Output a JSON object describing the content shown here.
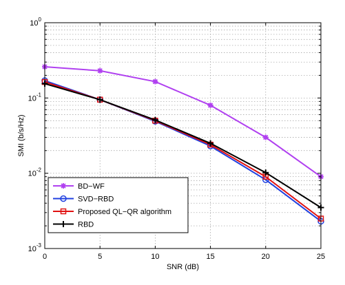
{
  "chart_data": {
    "type": "line",
    "title": "",
    "xlabel": "SNR (dB)",
    "ylabel": "SMI (b/s/Hz)",
    "xlim": [
      0,
      25
    ],
    "ylim": [
      0.001,
      1
    ],
    "yscale": "log",
    "grid": true,
    "legend_position": "bottom-left",
    "x_ticks": [
      0,
      5,
      10,
      15,
      20,
      25
    ],
    "x_tick_labels": [
      "0",
      "5",
      "10",
      "15",
      "20",
      "25"
    ],
    "y_ticks": [
      0.001,
      0.01,
      0.1,
      1
    ],
    "y_tick_labels": [
      {
        "base": "10",
        "exp": "-3"
      },
      {
        "base": "10",
        "exp": "-2"
      },
      {
        "base": "10",
        "exp": "-1"
      },
      {
        "base": "10",
        "exp": "0"
      }
    ],
    "x": [
      0,
      5,
      10,
      15,
      20,
      25
    ],
    "series": [
      {
        "name": "BD−WF",
        "values": [
          0.26,
          0.23,
          0.165,
          0.08,
          0.03,
          0.009
        ],
        "color": "#b040f0",
        "marker": "star"
      },
      {
        "name": "SVD−RBD",
        "values": [
          0.17,
          0.095,
          0.049,
          0.023,
          0.0082,
          0.0023
        ],
        "color": "#2040e0",
        "marker": "circle"
      },
      {
        "name": "Proposed QL−QR algorithm",
        "values": [
          0.163,
          0.095,
          0.05,
          0.024,
          0.009,
          0.0025
        ],
        "color": "#e01010",
        "marker": "square"
      },
      {
        "name": "RBD",
        "values": [
          0.155,
          0.095,
          0.051,
          0.025,
          0.0102,
          0.0035
        ],
        "color": "#000000",
        "marker": "plus"
      }
    ]
  }
}
